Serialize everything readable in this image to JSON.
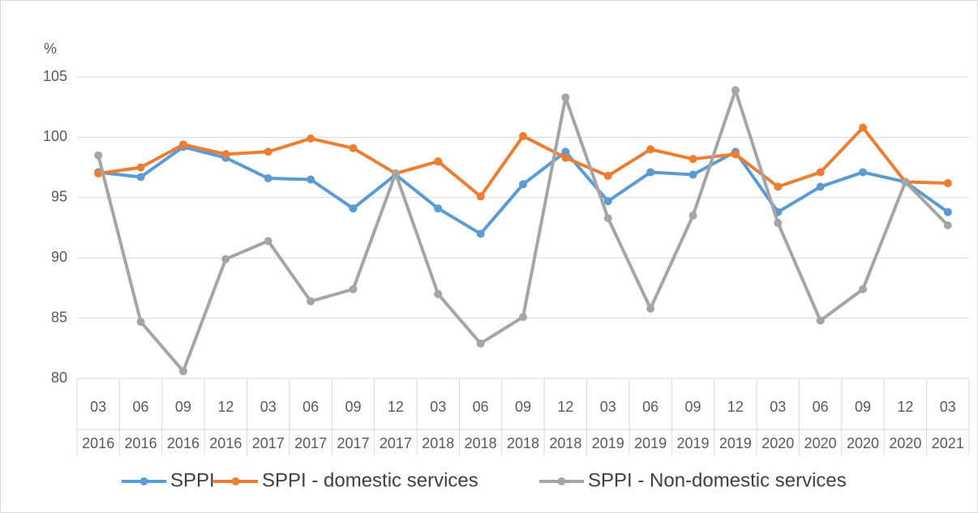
{
  "chart_data": {
    "type": "line",
    "y_label": "%",
    "categories": [
      [
        "03",
        "2016"
      ],
      [
        "06",
        "2016"
      ],
      [
        "09",
        "2016"
      ],
      [
        "12",
        "2016"
      ],
      [
        "03",
        "2017"
      ],
      [
        "06",
        "2017"
      ],
      [
        "09",
        "2017"
      ],
      [
        "12",
        "2017"
      ],
      [
        "03",
        "2018"
      ],
      [
        "06",
        "2018"
      ],
      [
        "09",
        "2018"
      ],
      [
        "12",
        "2018"
      ],
      [
        "03",
        "2019"
      ],
      [
        "06",
        "2019"
      ],
      [
        "09",
        "2019"
      ],
      [
        "12",
        "2019"
      ],
      [
        "03",
        "2020"
      ],
      [
        "06",
        "2020"
      ],
      [
        "09",
        "2020"
      ],
      [
        "12",
        "2020"
      ],
      [
        "03",
        "2021"
      ]
    ],
    "series": [
      {
        "name": "SPPI",
        "color": "#5b9bd5",
        "values": [
          97.1,
          96.7,
          99.2,
          98.3,
          96.6,
          96.5,
          94.1,
          96.9,
          94.1,
          92.0,
          96.1,
          98.8,
          94.7,
          97.1,
          96.9,
          98.8,
          93.8,
          95.9,
          97.1,
          96.3,
          93.8
        ]
      },
      {
        "name": "SPPI - domestic services",
        "color": "#ed7d31",
        "values": [
          97.0,
          97.5,
          99.4,
          98.6,
          98.8,
          99.9,
          99.1,
          97.0,
          98.0,
          95.1,
          100.1,
          98.3,
          96.8,
          99.0,
          98.2,
          98.6,
          95.9,
          97.1,
          100.8,
          96.3,
          96.2
        ]
      },
      {
        "name": "SPPI - Non-domestic services",
        "color": "#a5a5a5",
        "values": [
          98.5,
          84.7,
          80.6,
          89.9,
          91.4,
          86.4,
          87.4,
          97.0,
          87.0,
          82.9,
          85.1,
          103.3,
          93.3,
          85.8,
          93.5,
          103.9,
          92.9,
          84.8,
          87.4,
          96.3,
          92.7
        ]
      }
    ],
    "ylim": [
      80,
      105
    ],
    "yticks": [
      80,
      85,
      90,
      95,
      100,
      105
    ],
    "grid": true,
    "legend": "bottom"
  }
}
